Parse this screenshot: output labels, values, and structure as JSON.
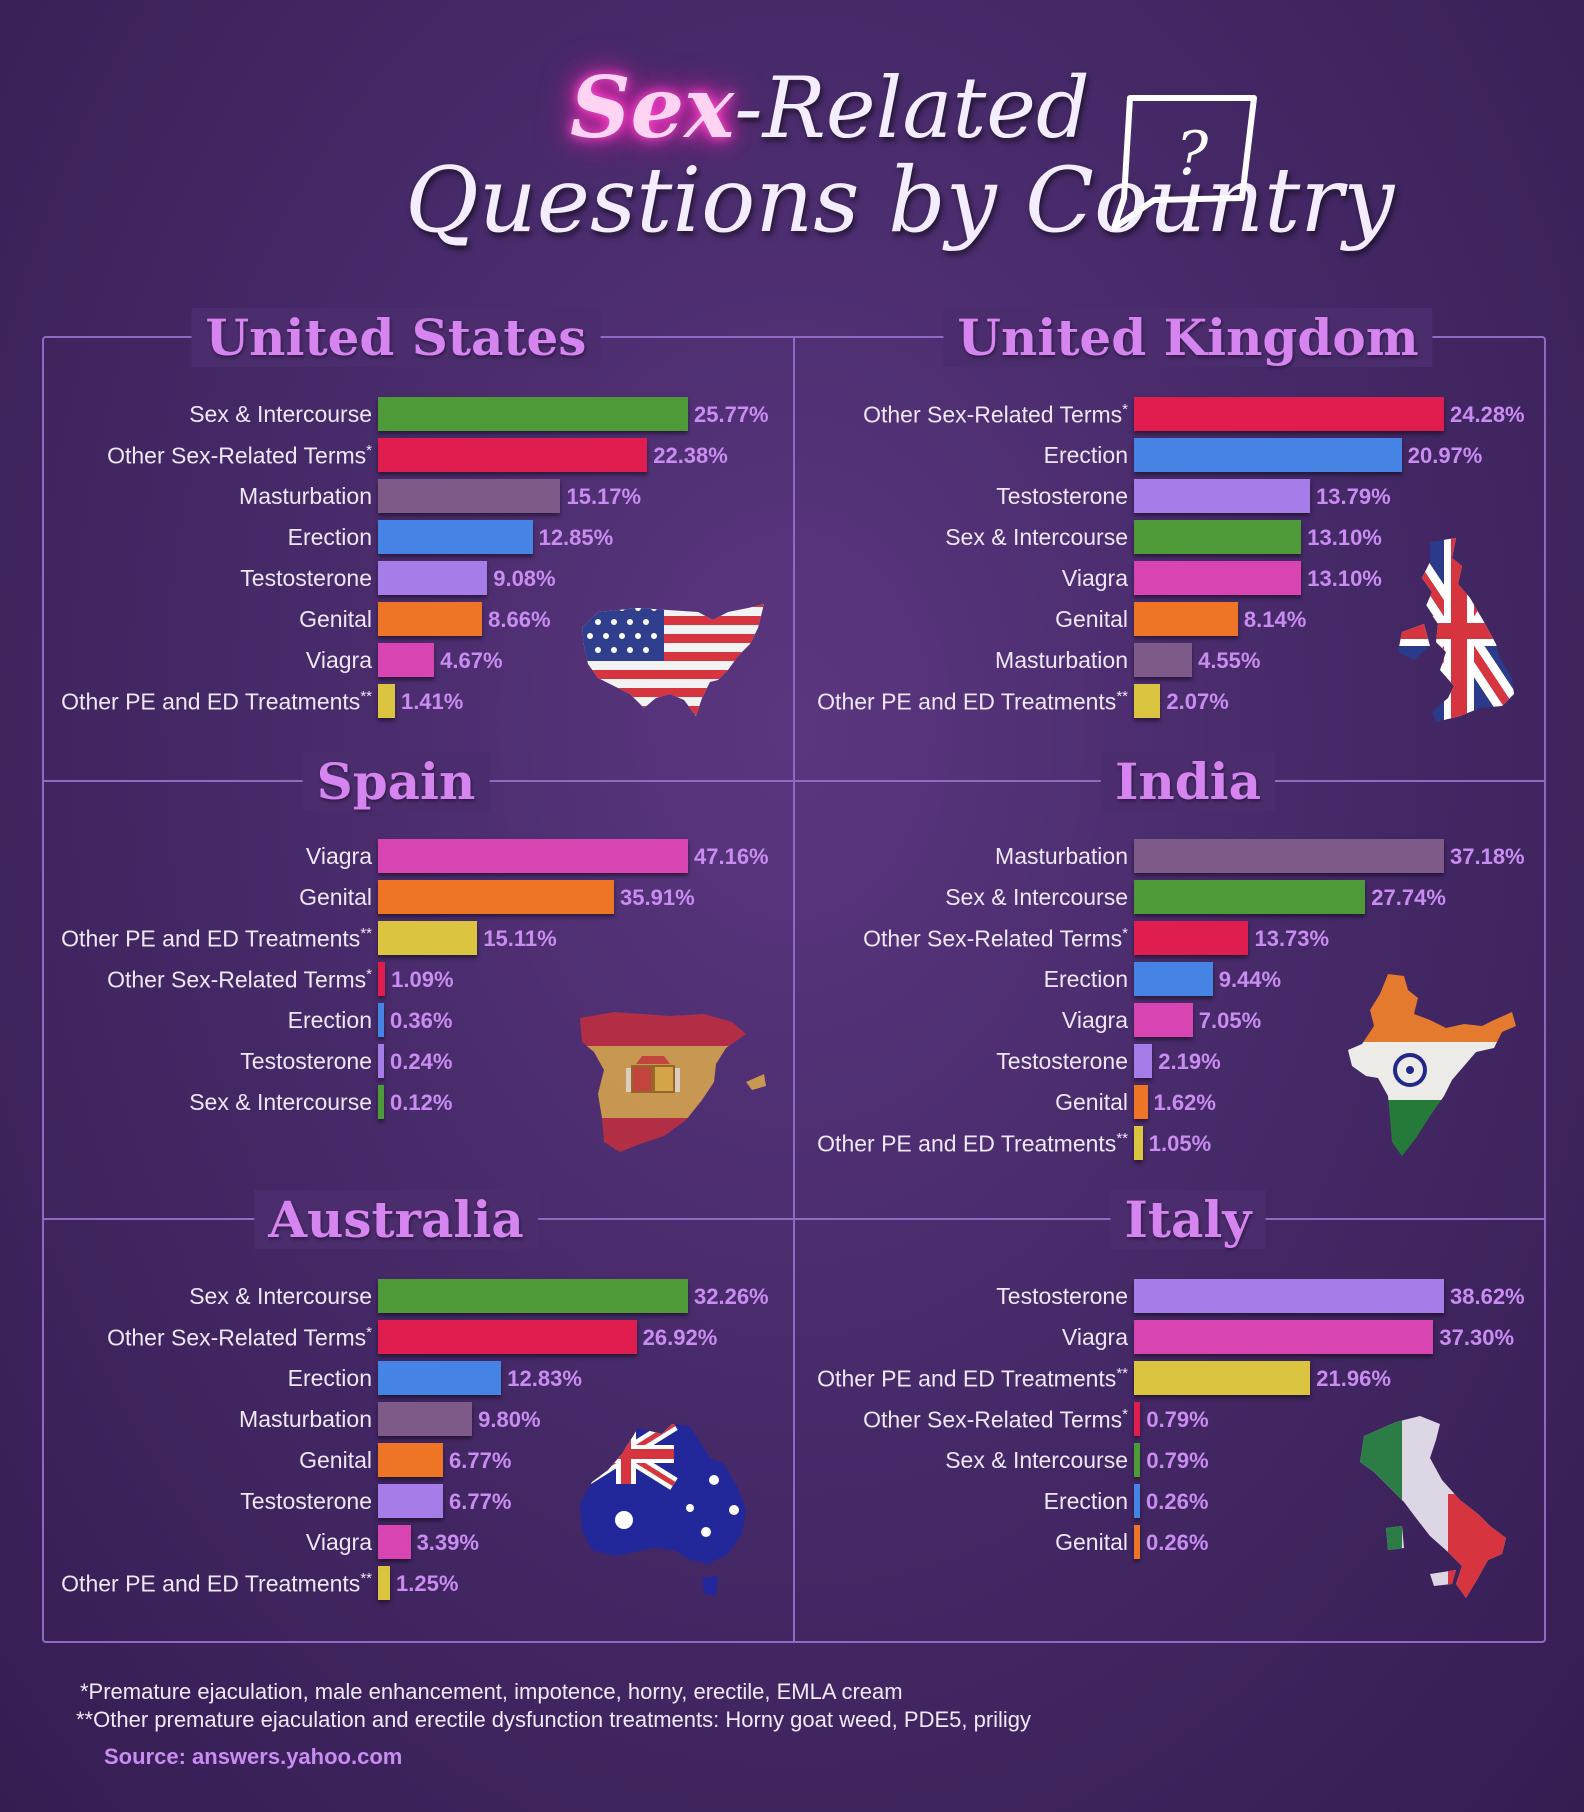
{
  "header": {
    "title_highlight": "Sex",
    "title_line1": "-Related",
    "title_line2": "Questions by Country",
    "bubble_symbol": "?"
  },
  "colors": {
    "Sex & Intercourse": "#4f9a38",
    "Other Sex-Related Terms": "#df1d4e",
    "Masturbation": "#7d5a87",
    "Erection": "#4584e4",
    "Testosterone": "#a67ce9",
    "Genital": "#ee7525",
    "Viagra": "#d844b2",
    "Other PE and ED Treatments": "#dbc43f"
  },
  "chart_data": [
    {
      "type": "bar",
      "title": "United States",
      "flag": "us-flag-map",
      "categories": [
        "Sex & Intercourse",
        "Other Sex-Related Terms",
        "Masturbation",
        "Erection",
        "Testosterone",
        "Genital",
        "Viagra",
        "Other PE and ED Treatments"
      ],
      "markers": [
        "",
        "*",
        "",
        "",
        "",
        "",
        "",
        "**"
      ],
      "values": [
        25.77,
        22.38,
        15.17,
        12.85,
        9.08,
        8.66,
        4.67,
        1.41
      ],
      "labels": [
        "25.77%",
        "22.38%",
        "15.17%",
        "12.85%",
        "9.08%",
        "8.66%",
        "4.67%",
        "1.41%"
      ]
    },
    {
      "type": "bar",
      "title": "United Kingdom",
      "flag": "uk-flag-map",
      "categories": [
        "Other Sex-Related Terms",
        "Erection",
        "Testosterone",
        "Sex & Intercourse",
        "Viagra",
        "Genital",
        "Masturbation",
        "Other PE and ED Treatments"
      ],
      "markers": [
        "*",
        "",
        "",
        "",
        "",
        "",
        "",
        "**"
      ],
      "values": [
        24.28,
        20.97,
        13.79,
        13.1,
        13.1,
        8.14,
        4.55,
        2.07
      ],
      "labels": [
        "24.28%",
        "20.97%",
        "13.79%",
        "13.10%",
        "13.10%",
        "8.14%",
        "4.55%",
        "2.07%"
      ]
    },
    {
      "type": "bar",
      "title": "Spain",
      "flag": "spain-flag-map",
      "categories": [
        "Viagra",
        "Genital",
        "Other PE and ED Treatments",
        "Other Sex-Related Terms",
        "Erection",
        "Testosterone",
        "Sex & Intercourse"
      ],
      "markers": [
        "",
        "",
        "**",
        "*",
        "",
        "",
        ""
      ],
      "values": [
        47.16,
        35.91,
        15.11,
        1.09,
        0.36,
        0.24,
        0.12
      ],
      "labels": [
        "47.16%",
        "35.91%",
        "15.11%",
        "1.09%",
        "0.36%",
        "0.24%",
        "0.12%"
      ]
    },
    {
      "type": "bar",
      "title": "India",
      "flag": "india-flag-map",
      "categories": [
        "Masturbation",
        "Sex & Intercourse",
        "Other Sex-Related Terms",
        "Erection",
        "Viagra",
        "Testosterone",
        "Genital",
        "Other PE and ED Treatments"
      ],
      "markers": [
        "",
        "",
        "*",
        "",
        "",
        "",
        "",
        "**"
      ],
      "values": [
        37.18,
        27.74,
        13.73,
        9.44,
        7.05,
        2.19,
        1.62,
        1.05
      ],
      "labels": [
        "37.18%",
        "27.74%",
        "13.73%",
        "9.44%",
        "7.05%",
        "2.19%",
        "1.62%",
        "1.05%"
      ]
    },
    {
      "type": "bar",
      "title": "Australia",
      "flag": "australia-flag-map",
      "categories": [
        "Sex & Intercourse",
        "Other Sex-Related Terms",
        "Erection",
        "Masturbation",
        "Genital",
        "Testosterone",
        "Viagra",
        "Other PE and ED Treatments"
      ],
      "markers": [
        "",
        "*",
        "",
        "",
        "",
        "",
        "",
        "**"
      ],
      "values": [
        32.26,
        26.92,
        12.83,
        9.8,
        6.77,
        6.77,
        3.39,
        1.25
      ],
      "labels": [
        "32.26%",
        "26.92%",
        "12.83%",
        "9.80%",
        "6.77%",
        "6.77%",
        "3.39%",
        "1.25%"
      ]
    },
    {
      "type": "bar",
      "title": "Italy",
      "flag": "italy-flag-map",
      "categories": [
        "Testosterone",
        "Viagra",
        "Other PE and ED Treatments",
        "Other Sex-Related Terms",
        "Sex & Intercourse",
        "Erection",
        "Genital"
      ],
      "markers": [
        "",
        "",
        "**",
        "*",
        "",
        "",
        ""
      ],
      "values": [
        38.62,
        37.3,
        21.96,
        0.79,
        0.79,
        0.26,
        0.26
      ],
      "labels": [
        "38.62%",
        "37.30%",
        "21.96%",
        "0.79%",
        "0.79%",
        "0.26%",
        "0.26%"
      ]
    }
  ],
  "footnotes": {
    "note1": "*Premature ejaculation, male enhancement, impotence, horny, erectile, EMLA cream",
    "note2": "**Other premature ejaculation and erectile dysfunction treatments: Horny goat weed, PDE5, priligy",
    "source": "Source: answers.yahoo.com"
  }
}
